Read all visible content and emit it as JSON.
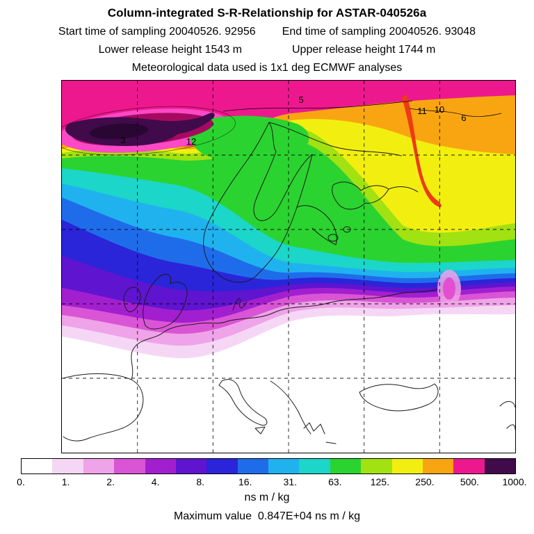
{
  "title": "Column-integrated S-R-Relationship for ASTAR-040526a",
  "header": {
    "start_time_label": "Start time of sampling 20040526. 92956",
    "end_time_label": "End time of sampling 20040526. 93048",
    "lower_release_label": "Lower release height 1543 m",
    "upper_release_label": "Upper release height 1744 m",
    "met_data_label": "Meteorological data used is 1x1 deg ECMWF analyses"
  },
  "map": {
    "contour_labels": [
      {
        "text": "3"
      },
      {
        "text": "12"
      },
      {
        "text": "5"
      },
      {
        "text": "11"
      },
      {
        "text": "10"
      },
      {
        "text": "6"
      }
    ]
  },
  "colorbar": {
    "tick_labels": [
      "0.",
      "1.",
      "2.",
      "4.",
      "8.",
      "16.",
      "31.",
      "63.",
      "125.",
      "250.",
      "500.",
      "1000."
    ],
    "unit_label": "ns m / kg"
  },
  "footer": {
    "max_value_label": "Maximum value  0.847E+04 ns m / kg"
  },
  "chart_data": {
    "type": "heatmap",
    "title": "Column-integrated S-R-Relationship for ASTAR-040526a",
    "units": "ns m / kg",
    "region": "Europe, filled-contour source-receptor field over coastline map with dashed lat/lon grid",
    "colorbar_levels": [
      0,
      1,
      2,
      4,
      8,
      16,
      31,
      63,
      125,
      250,
      500,
      1000
    ],
    "colorbar_colors": [
      "#ffffff",
      "#f6d6f5",
      "#efa3e8",
      "#da55d5",
      "#a21fd0",
      "#5f14cf",
      "#2a25d8",
      "#1f6ceb",
      "#1fb2ef",
      "#1cd6c9",
      "#2bd330",
      "#a2e112",
      "#f2ef10",
      "#f9a512",
      "#ee188e",
      "#410a4b"
    ],
    "max_value": "0.847E+04",
    "contour_line_labels": [
      "3",
      "12",
      "5",
      "11",
      "10",
      "6"
    ],
    "grid": true,
    "legend_position": "bottom",
    "approx_field_values_grid": {
      "note": "coarse visual estimate of field values (ns m/kg) at the 5x6 map grid cells, row-major from top-left",
      "values": [
        [
          1000,
          500,
          300,
          300,
          250,
          200
        ],
        [
          8,
          20,
          40,
          60,
          100,
          125
        ],
        [
          10,
          12,
          25,
          40,
          70,
          80
        ],
        [
          0.5,
          1,
          0.3,
          0.2,
          0.2,
          0.5
        ],
        [
          0,
          0,
          0,
          0,
          0,
          0
        ]
      ]
    }
  }
}
